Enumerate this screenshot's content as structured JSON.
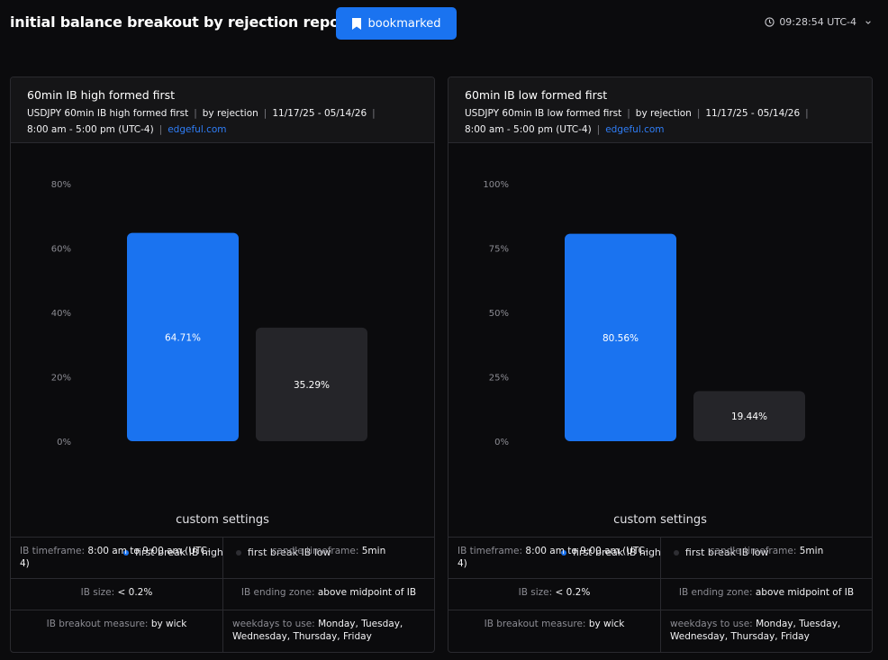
{
  "header": {
    "title": "initial balance breakout by rejection report",
    "bookmark_label": "bookmarked",
    "time": "09:28:54 UTC-4"
  },
  "colors": {
    "accent": "#1a73f0",
    "bar_secondary": "#252529",
    "link": "#2f7df6"
  },
  "cards": [
    {
      "title": "60min IB high formed first",
      "meta": {
        "subject": "USDJPY 60min IB high formed first",
        "method": "by rejection",
        "dates": "11/17/25 - 05/14/26",
        "hours": "8:00 am - 5:00 pm (UTC-4)",
        "source": "edgeful.com"
      },
      "settings_title": "custom settings",
      "settings": {
        "ib_timeframe_key": "IB timeframe:",
        "ib_timeframe_val": "8:00 am to 9:00 am (UTC-4)",
        "candle_key": "candle timeframe:",
        "candle_val": "5min",
        "ib_size_key": "IB size:",
        "ib_size_val": "< 0.2%",
        "ending_key": "IB ending zone:",
        "ending_val": "above midpoint of IB",
        "measure_key": "IB breakout measure:",
        "measure_val": "by wick",
        "weekdays_key": "weekdays to use:",
        "weekdays_val": "Monday, Tuesday, Wednesday, Thursday, Friday"
      }
    },
    {
      "title": "60min IB low formed first",
      "meta": {
        "subject": "USDJPY 60min IB low formed first",
        "method": "by rejection",
        "dates": "11/17/25 - 05/14/26",
        "hours": "8:00 am - 5:00 pm (UTC-4)",
        "source": "edgeful.com"
      },
      "settings_title": "custom settings",
      "settings": {
        "ib_timeframe_key": "IB timeframe:",
        "ib_timeframe_val": "8:00 am to 9:00 am (UTC-4)",
        "candle_key": "candle timeframe:",
        "candle_val": "5min",
        "ib_size_key": "IB size:",
        "ib_size_val": "< 0.2%",
        "ending_key": "IB ending zone:",
        "ending_val": "above midpoint of IB",
        "measure_key": "IB breakout measure:",
        "measure_val": "by wick",
        "weekdays_key": "weekdays to use:",
        "weekdays_val": "Monday, Tuesday, Wednesday, Thursday, Friday"
      }
    }
  ],
  "chart_data": [
    {
      "type": "bar",
      "categories": [
        "first break IB high",
        "first break IB low"
      ],
      "values": [
        64.71,
        35.29
      ],
      "data_labels": [
        "64.71%",
        "35.29%"
      ],
      "yticks": [
        "0%",
        "20%",
        "40%",
        "60%",
        "80%"
      ],
      "ylim": [
        0,
        80
      ],
      "bar_colors": [
        "#1a73f0",
        "#252529"
      ],
      "legend": [
        "first break IB high",
        "first break IB low"
      ],
      "legend_position": "bottom",
      "grid": false
    },
    {
      "type": "bar",
      "categories": [
        "first break IB high",
        "first break IB low"
      ],
      "values": [
        80.56,
        19.44
      ],
      "data_labels": [
        "80.56%",
        "19.44%"
      ],
      "yticks": [
        "0%",
        "25%",
        "50%",
        "75%",
        "100%"
      ],
      "ylim": [
        0,
        100
      ],
      "bar_colors": [
        "#1a73f0",
        "#252529"
      ],
      "legend": [
        "first break IB high",
        "first break IB low"
      ],
      "legend_position": "bottom",
      "grid": false
    }
  ]
}
